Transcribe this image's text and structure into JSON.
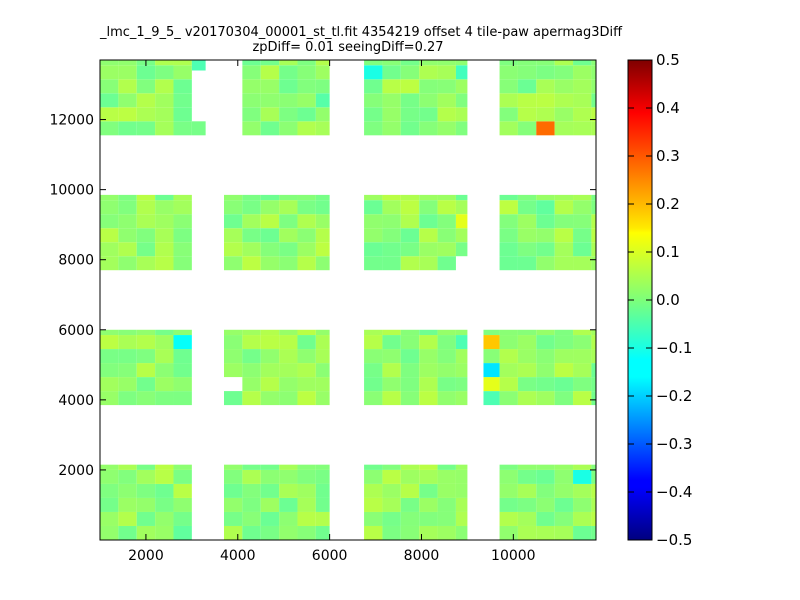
{
  "chart_data": {
    "type": "heatmap",
    "title_line1": "_lmc_1_9_5_ v20170304_00001_st_tl.fit 4354219 offset 4 tile-paw apermag3Diff",
    "title_line2": "zpDiff= 0.01 seeingDiff=0.27",
    "xlabel": "",
    "ylabel": "",
    "xlim": [
      1000,
      11800
    ],
    "ylim": [
      0,
      13700
    ],
    "xticks": [
      "2000",
      "4000",
      "6000",
      "8000",
      "10000"
    ],
    "yticks": [
      "2000",
      "4000",
      "6000",
      "8000",
      "10000",
      "12000"
    ],
    "colorbar": {
      "colormap": "jet",
      "range": [
        -0.5,
        0.5
      ],
      "ticks": [
        "0.5",
        "0.4",
        "0.3",
        "0.2",
        "0.1",
        "0.0",
        "−0.1",
        "−0.2",
        "−0.3",
        "−0.4",
        "−0.5"
      ]
    },
    "cell_size": [
      400,
      400
    ],
    "detector_columns": [
      {
        "x0": 1000,
        "x1": 3000
      },
      {
        "x0": 3700,
        "x1": 6000
      },
      {
        "x0": 6750,
        "x1": 9000
      },
      {
        "x0": 9700,
        "x1": 11800
      }
    ],
    "detector_rows": [
      {
        "y0": 0,
        "y1": 2150
      },
      {
        "y0": 3850,
        "y1": 6000
      },
      {
        "y0": 7700,
        "y1": 9850
      },
      {
        "y0": 11550,
        "y1": 13700
      }
    ],
    "base_value": 0.02,
    "highlight_cells": [
      {
        "x": 10550,
        "y": 11750,
        "value": 0.27
      },
      {
        "x": 8900,
        "y": 9250,
        "value": 0.1
      },
      {
        "x": 9600,
        "y": 5800,
        "value": 0.18
      },
      {
        "x": 9600,
        "y": 4450,
        "value": 0.1
      },
      {
        "x": 9600,
        "y": 5000,
        "value": -0.15
      },
      {
        "x": 9600,
        "y": 4050,
        "value": -0.05
      },
      {
        "x": 2800,
        "y": 5800,
        "value": -0.12
      },
      {
        "x": 3200,
        "y": 13500,
        "value": -0.05
      },
      {
        "x": 6900,
        "y": 13500,
        "value": -0.1
      },
      {
        "x": 8800,
        "y": 13500,
        "value": -0.06
      },
      {
        "x": 5900,
        "y": 12450,
        "value": -0.04
      },
      {
        "x": 8850,
        "y": 5800,
        "value": -0.05
      },
      {
        "x": 8100,
        "y": 5800,
        "value": 0.05
      },
      {
        "x": 5950,
        "y": 8100,
        "value": 0.06
      },
      {
        "x": 11600,
        "y": 1950,
        "value": -0.1
      },
      {
        "x": 2750,
        "y": 300,
        "value": -0.03
      },
      {
        "x": 10650,
        "y": 9650,
        "value": -0.03
      },
      {
        "x": 7900,
        "y": 12750,
        "value": 0.06
      }
    ],
    "masked_cells": [
      {
        "x0": 3700,
        "y0": 11550,
        "x1": 3850,
        "y1": 13700
      },
      {
        "x0": 3000,
        "y0": 11950,
        "x1": 3300,
        "y1": 13050
      },
      {
        "x0": 3000,
        "y0": 12700,
        "x1": 3300,
        "y1": 13050
      },
      {
        "x0": 9000,
        "y0": 9850,
        "x1": 9350,
        "y1": 13700
      },
      {
        "x0": 8650,
        "y0": 7700,
        "x1": 9000,
        "y1": 8100
      },
      {
        "x0": 3700,
        "y0": 4250,
        "x1": 4000,
        "y1": 4650
      },
      {
        "x0": 9350,
        "y0": 0,
        "x1": 9700,
        "y1": 1300
      }
    ],
    "extra_cells": [
      {
        "x0": 3000,
        "y0": 13000,
        "x1": 3300,
        "y1": 13700
      },
      {
        "x0": 3000,
        "y0": 11550,
        "x1": 3300,
        "y1": 11950
      },
      {
        "x0": 9000,
        "y0": 8900,
        "x1": 9000,
        "y1": 8900
      },
      {
        "x0": 9350,
        "y0": 3850,
        "x1": 9700,
        "y1": 6000
      },
      {
        "x0": 9350,
        "y0": 0,
        "x1": 9700,
        "y1": 1300
      }
    ]
  }
}
